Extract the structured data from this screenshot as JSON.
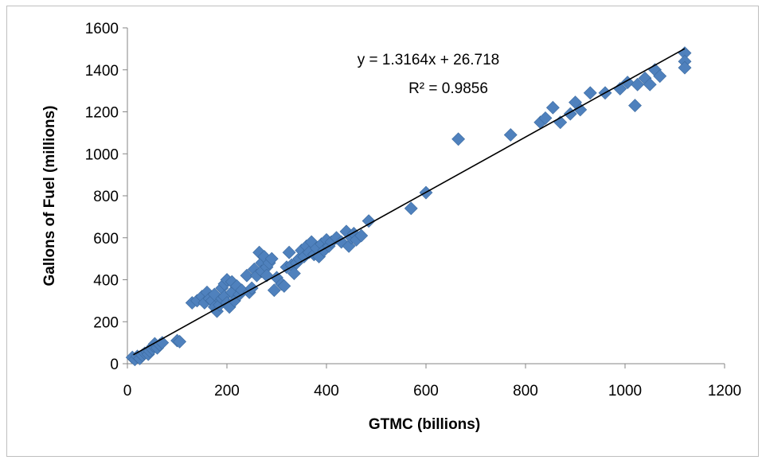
{
  "chart_data": {
    "type": "scatter",
    "title": "",
    "xlabel": "GTMC (billions)",
    "ylabel": "Gallons of Fuel (millions)",
    "xlim": [
      0,
      1200
    ],
    "ylim": [
      0,
      1600
    ],
    "xticks": [
      0,
      200,
      400,
      600,
      800,
      1000,
      1200
    ],
    "yticks": [
      0,
      200,
      400,
      600,
      800,
      1000,
      1200,
      1400,
      1600
    ],
    "grid": false,
    "legend": "none",
    "marker_color": "#4F81BD",
    "trendline_color": "#000000",
    "trendline": {
      "slope": 1.3164,
      "intercept": 26.718,
      "x_range": [
        12,
        1120
      ]
    },
    "annotations": [
      "y = 1.3164x + 26.718",
      "R² = 0.9856"
    ],
    "series": [
      {
        "points": [
          [
            10,
            30
          ],
          [
            15,
            20
          ],
          [
            20,
            35
          ],
          [
            25,
            25
          ],
          [
            30,
            40
          ],
          [
            35,
            50
          ],
          [
            40,
            55
          ],
          [
            42,
            45
          ],
          [
            45,
            60
          ],
          [
            50,
            70
          ],
          [
            52,
            85
          ],
          [
            55,
            95
          ],
          [
            60,
            75
          ],
          [
            65,
            90
          ],
          [
            70,
            100
          ],
          [
            100,
            110
          ],
          [
            105,
            105
          ],
          [
            130,
            290
          ],
          [
            140,
            300
          ],
          [
            150,
            320
          ],
          [
            155,
            290
          ],
          [
            160,
            340
          ],
          [
            165,
            310
          ],
          [
            170,
            300
          ],
          [
            175,
            330
          ],
          [
            175,
            270
          ],
          [
            180,
            250
          ],
          [
            185,
            280
          ],
          [
            190,
            310
          ],
          [
            190,
            360
          ],
          [
            195,
            380
          ],
          [
            195,
            320
          ],
          [
            200,
            290
          ],
          [
            200,
            400
          ],
          [
            205,
            270
          ],
          [
            210,
            340
          ],
          [
            210,
            390
          ],
          [
            215,
            300
          ],
          [
            220,
            370
          ],
          [
            225,
            330
          ],
          [
            230,
            350
          ],
          [
            240,
            420
          ],
          [
            245,
            340
          ],
          [
            250,
            360
          ],
          [
            255,
            450
          ],
          [
            260,
            420
          ],
          [
            265,
            530
          ],
          [
            270,
            480
          ],
          [
            270,
            440
          ],
          [
            275,
            510
          ],
          [
            280,
            460
          ],
          [
            280,
            420
          ],
          [
            285,
            480
          ],
          [
            290,
            500
          ],
          [
            295,
            350
          ],
          [
            300,
            410
          ],
          [
            310,
            380
          ],
          [
            315,
            370
          ],
          [
            320,
            460
          ],
          [
            325,
            530
          ],
          [
            330,
            470
          ],
          [
            335,
            430
          ],
          [
            340,
            480
          ],
          [
            345,
            500
          ],
          [
            350,
            540
          ],
          [
            355,
            510
          ],
          [
            360,
            560
          ],
          [
            365,
            530
          ],
          [
            370,
            580
          ],
          [
            375,
            520
          ],
          [
            380,
            550
          ],
          [
            385,
            510
          ],
          [
            390,
            570
          ],
          [
            395,
            540
          ],
          [
            400,
            590
          ],
          [
            405,
            560
          ],
          [
            410,
            580
          ],
          [
            420,
            600
          ],
          [
            430,
            580
          ],
          [
            440,
            630
          ],
          [
            445,
            560
          ],
          [
            450,
            600
          ],
          [
            455,
            620
          ],
          [
            460,
            590
          ],
          [
            470,
            610
          ],
          [
            485,
            680
          ],
          [
            570,
            740
          ],
          [
            600,
            815
          ],
          [
            665,
            1070
          ],
          [
            770,
            1090
          ],
          [
            830,
            1150
          ],
          [
            840,
            1170
          ],
          [
            855,
            1220
          ],
          [
            870,
            1150
          ],
          [
            890,
            1190
          ],
          [
            900,
            1245
          ],
          [
            910,
            1210
          ],
          [
            930,
            1290
          ],
          [
            960,
            1290
          ],
          [
            990,
            1310
          ],
          [
            1005,
            1340
          ],
          [
            1020,
            1230
          ],
          [
            1025,
            1330
          ],
          [
            1040,
            1360
          ],
          [
            1050,
            1330
          ],
          [
            1060,
            1400
          ],
          [
            1070,
            1370
          ],
          [
            1120,
            1480
          ],
          [
            1120,
            1440
          ],
          [
            1120,
            1410
          ]
        ]
      }
    ]
  }
}
